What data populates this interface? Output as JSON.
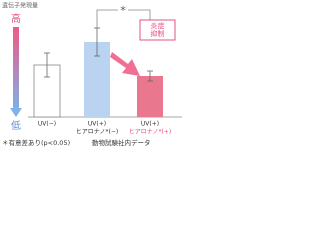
{
  "chart_data": {
    "type": "bar",
    "y_label": "遺伝子発現量",
    "high_label": "高",
    "low_label": "低",
    "categories": [
      [
        "UV(−)"
      ],
      [
        "UV(+)",
        "ヒアロナノ*(−)"
      ],
      [
        "UV(+)",
        "ヒアロナノ*(+)"
      ]
    ],
    "values": [
      52,
      75,
      41
    ],
    "errors": [
      12,
      14,
      5
    ],
    "colors": [
      "#ffffff",
      "#b9d3f0",
      "#e9788f"
    ],
    "ylim": [
      0,
      100
    ],
    "significance": "*",
    "callout": [
      "炎症",
      "抑制"
    ],
    "footnote": "＊有意差あり(p<0.05)",
    "source": "動物試験社内データ"
  }
}
